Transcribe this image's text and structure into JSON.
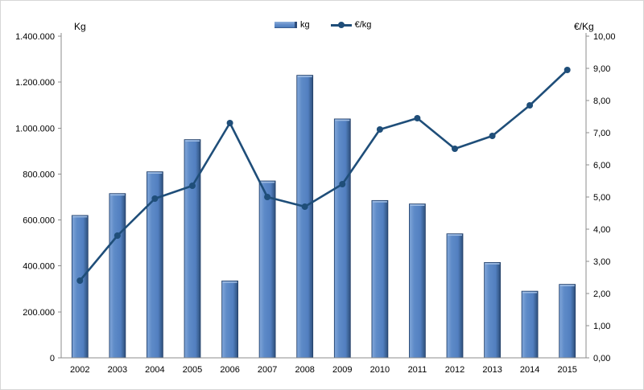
{
  "chart_data": {
    "type": "bar",
    "subtype": "combo-bar-line",
    "categories": [
      "2002",
      "2003",
      "2004",
      "2005",
      "2006",
      "2007",
      "2008",
      "2009",
      "2010",
      "2011",
      "2012",
      "2013",
      "2014",
      "2015"
    ],
    "series": [
      {
        "name": "kg",
        "type": "bar",
        "axis": "left",
        "color": "#5585C5",
        "values": [
          620000,
          715000,
          810000,
          950000,
          335000,
          770000,
          1230000,
          1040000,
          685000,
          670000,
          540000,
          415000,
          290000,
          320000
        ]
      },
      {
        "name": "€/kg",
        "type": "line",
        "axis": "right",
        "color": "#1F4E79",
        "values": [
          2.4,
          3.8,
          4.95,
          5.35,
          7.3,
          5.0,
          4.7,
          5.4,
          7.1,
          7.45,
          6.5,
          6.9,
          7.85,
          8.95
        ]
      }
    ],
    "left_axis": {
      "label": "Kg",
      "min": 0,
      "max": 1400000,
      "step": 200000,
      "tick_labels": [
        "0",
        "200.000",
        "400.000",
        "600.000",
        "800.000",
        "1.000.000",
        "1.200.000",
        "1.400.000"
      ]
    },
    "right_axis": {
      "label": "€/Kg",
      "min": 0,
      "max": 10,
      "step": 1,
      "tick_labels": [
        "0,00",
        "1,00",
        "2,00",
        "3,00",
        "4,00",
        "5,00",
        "6,00",
        "7,00",
        "8,00",
        "9,00",
        "10,00"
      ]
    },
    "legend": {
      "position": "top-center",
      "entries": [
        "kg",
        "€/kg"
      ]
    },
    "grid": false,
    "colors": {
      "bar_fill": "#5585C5",
      "bar_fill_light": "#7CA2D6",
      "bar_fill_dark": "#2E4D7B",
      "bar_border": "#1F3B63",
      "line": "#1F4E79",
      "axis": "#8C8C8C",
      "text": "#000000",
      "background": "#FFFFFF"
    }
  }
}
